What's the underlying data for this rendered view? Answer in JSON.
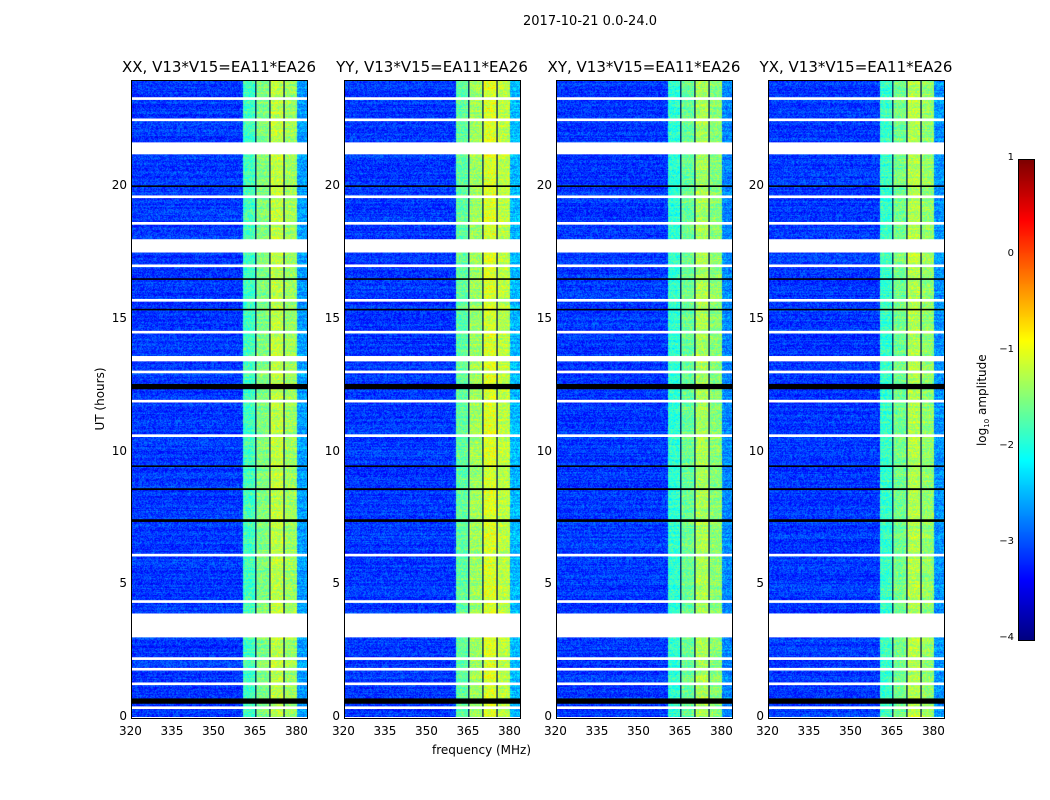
{
  "chart_data": {
    "type": "heatmap",
    "title": "2017-10-21 0.0-24.0",
    "xlabel": "frequency (MHz)",
    "ylabel": "UT (hours)",
    "xlim": [
      320,
      384
    ],
    "ylim": [
      0,
      24
    ],
    "xticks": [
      "320",
      "335",
      "350",
      "365",
      "380"
    ],
    "yticks": [
      "0",
      "5",
      "10",
      "15",
      "20"
    ],
    "panels": [
      {
        "title": "XX, V13*V15=EA11*EA26",
        "band_offset": 0.0
      },
      {
        "title": "YY, V13*V15=EA11*EA26",
        "band_offset": 0.15
      },
      {
        "title": "XY, V13*V15=EA11*EA26",
        "band_offset": -0.1
      },
      {
        "title": "YX, V13*V15=EA11*EA26",
        "band_offset": -0.05
      }
    ],
    "background_log_amplitude": -3.1,
    "spectral_bands": [
      {
        "from_mhz": 360.4,
        "to_mhz": 365.1,
        "log_amplitude": -1.8
      },
      {
        "from_mhz": 365.1,
        "to_mhz": 370.2,
        "log_amplitude": -1.5
      },
      {
        "from_mhz": 370.2,
        "to_mhz": 375.3,
        "log_amplitude": -1.2
      },
      {
        "from_mhz": 375.3,
        "to_mhz": 380.0,
        "log_amplitude": -1.35
      },
      {
        "from_mhz": 380.0,
        "to_mhz": 384.0,
        "log_amplitude": -2.6
      }
    ],
    "channel_gaps_mhz": [
      365.1,
      370.2,
      375.3
    ],
    "flagged_hours": [
      [
        23.25,
        23.35
      ],
      [
        22.45,
        22.55
      ],
      [
        21.2,
        21.65
      ],
      [
        19.55,
        19.65
      ],
      [
        18.55,
        18.65
      ],
      [
        17.5,
        18.0
      ],
      [
        16.95,
        17.05
      ],
      [
        15.65,
        15.75
      ],
      [
        14.45,
        14.55
      ],
      [
        13.4,
        13.6
      ],
      [
        12.95,
        13.05
      ],
      [
        11.85,
        11.95
      ],
      [
        10.55,
        10.65
      ],
      [
        6.05,
        6.15
      ],
      [
        4.3,
        4.4
      ],
      [
        3.0,
        3.9
      ],
      [
        2.15,
        2.25
      ],
      [
        1.75,
        1.85
      ],
      [
        1.2,
        1.3
      ],
      [
        0.3,
        0.4
      ]
    ],
    "zero_hours": [
      [
        19.97,
        20.03
      ],
      [
        16.47,
        16.53
      ],
      [
        15.32,
        15.38
      ],
      [
        12.35,
        12.55
      ],
      [
        9.42,
        9.48
      ],
      [
        8.55,
        8.62
      ],
      [
        7.35,
        7.45
      ],
      [
        0.5,
        0.7
      ]
    ],
    "colorbar": {
      "label": "log10 amplitude",
      "label_main": "log",
      "label_sub": "10",
      "label_rest": " amplitude",
      "range": [
        -4,
        1
      ],
      "ticks": [
        "1",
        "0",
        "−1",
        "−2",
        "−3",
        "−4"
      ],
      "colormap": "jet"
    }
  }
}
